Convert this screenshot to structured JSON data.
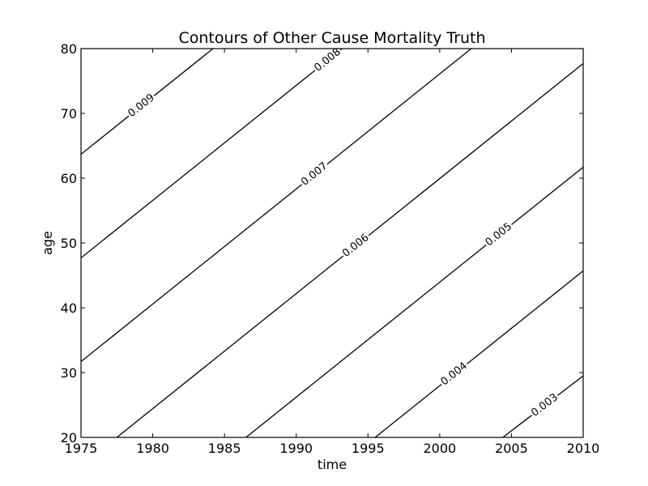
{
  "chart_data": {
    "type": "contour",
    "title": "Contours of Other Cause Mortality Truth",
    "xlabel": "time",
    "ylabel": "age",
    "xlim": [
      1975,
      2010
    ],
    "ylim": [
      20,
      80
    ],
    "xticks": [
      1975,
      1980,
      1985,
      1990,
      1995,
      2000,
      2005,
      2010
    ],
    "yticks": [
      20,
      30,
      40,
      50,
      60,
      70,
      80
    ],
    "grid": false,
    "contours": [
      {
        "label": "0.009",
        "points": [
          [
            1975,
            63.7
          ],
          [
            1984.2,
            80
          ]
        ],
        "label_at": [
          1979.2,
          71.2
        ]
      },
      {
        "label": "0.008",
        "points": [
          [
            1975,
            47.7
          ],
          [
            1993.2,
            80
          ]
        ],
        "label_at": [
          1992.2,
          78.2
        ]
      },
      {
        "label": "0.007",
        "points": [
          [
            1975,
            31.7
          ],
          [
            2002.2,
            80
          ]
        ],
        "label_at": [
          1991.2,
          60.8
        ]
      },
      {
        "label": "0.006",
        "points": [
          [
            1977.5,
            20
          ],
          [
            2010,
            77.7
          ]
        ],
        "label_at": [
          1994.0,
          50.0
        ]
      },
      {
        "label": "0.005",
        "points": [
          [
            1986.5,
            20
          ],
          [
            2010,
            61.7
          ]
        ],
        "label_at": [
          2004.0,
          51.6
        ]
      },
      {
        "label": "0.004",
        "points": [
          [
            1995.5,
            20
          ],
          [
            2010,
            45.7
          ]
        ],
        "label_at": [
          2001.0,
          29.8
        ]
      },
      {
        "label": "0.003",
        "points": [
          [
            2004.4,
            20
          ],
          [
            2010,
            29.5
          ]
        ],
        "label_at": [
          2007.3,
          25.0
        ]
      }
    ]
  }
}
